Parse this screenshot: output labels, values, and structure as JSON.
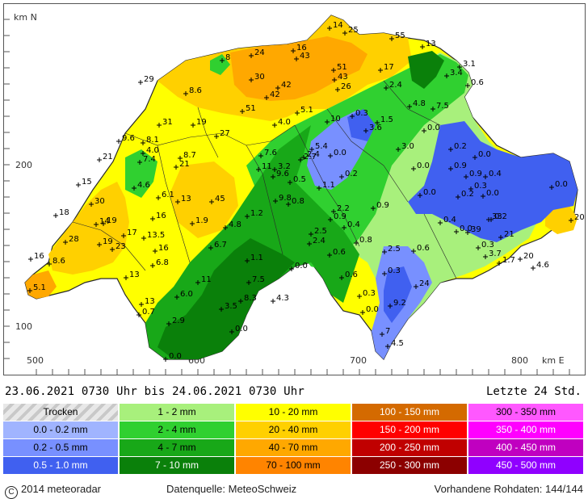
{
  "map": {
    "y_unit_label": "km N",
    "x_unit_label": "km E",
    "x_ticks": [
      "500",
      "600",
      "700",
      "800"
    ],
    "y_ticks": [
      "200",
      "100"
    ],
    "colors": {
      "border": "#2a2a2a",
      "trocken": "#ffffff",
      "c_0_02": "#a0b4ff",
      "c_02_05": "#7890ff",
      "c_05_1": "#4060f0",
      "c_1_2": "#a8f07c",
      "c_2_4": "#30d030",
      "c_4_7": "#18a818",
      "c_7_10": "#0a800a",
      "c_10_20": "#ffff00",
      "c_20_40": "#ffd000",
      "c_40_70": "#ffa800",
      "c_70_100": "#ff8400"
    },
    "labels": [
      "14",
      "25",
      "55",
      "13",
      "16",
      "43",
      "24",
      "8",
      "29",
      "30",
      "42",
      "51",
      "43",
      "17",
      "3.1",
      "0.6",
      "26",
      "8.6",
      "42",
      "3.4",
      "51",
      "2.4",
      "4.8",
      "7.5",
      "5.1",
      "10",
      "0.3",
      "1.5",
      "3.6",
      "31",
      "9.6",
      "19",
      "27",
      "4.0",
      "0.0",
      "0.2",
      "0.0",
      "21",
      "8.1",
      "4.0",
      "5.4",
      "2.4",
      "3.0",
      "0.0",
      "7.4",
      "21",
      "8.7",
      "7.6",
      "2.7",
      "0.0",
      "0.9",
      "0.9",
      "0.4",
      "15",
      "11",
      "3.2",
      "9.6",
      "0.2",
      "0.3",
      "0.0",
      "4.6",
      "6.1",
      "13",
      "45",
      "0.5",
      "1.1",
      "0.2",
      "18",
      "30",
      "9.8",
      "0.8",
      "0.9",
      "0.0",
      "0.0",
      "0.2",
      "20",
      "14",
      "16",
      "1.9",
      "1.2",
      "2.2",
      "0.9",
      "0.4",
      "0.0",
      "33",
      "19",
      "17",
      "4.8",
      "2.5",
      "0.4",
      "39",
      "28",
      "19",
      "13.5",
      "6.7",
      "2.4",
      "0.8",
      "2.5",
      "0.6",
      "0.3",
      "21",
      "16",
      "8.6",
      "23",
      "16",
      "6.8",
      "1.1",
      "0.6",
      "3.7",
      "1.7",
      "20",
      "13",
      "0.0",
      "0.3",
      "4.6",
      "11",
      "7.5",
      "0.6",
      "24",
      "5.1",
      "6.0",
      "13",
      "4.3",
      "0.3",
      "9.2",
      "0.7",
      "3.5",
      "8.3",
      "2.9",
      "0.0",
      "7",
      "0.0",
      "4.5",
      "0.0"
    ]
  },
  "period": {
    "text": "23.06.2021 0730 Uhr  bis  24.06.2021 0730 Uhr",
    "window": "Letzte 24 Std."
  },
  "legend": {
    "columns": [
      [
        "Trocken",
        "0.0 - 0.2 mm",
        "0.2 - 0.5 mm",
        "0.5 - 1.0 mm"
      ],
      [
        "1 - 2 mm",
        "2 - 4 mm",
        "4 - 7 mm",
        "7 - 10 mm"
      ],
      [
        "10 - 20 mm",
        "20 - 40 mm",
        "40 - 70 mm",
        "70 - 100 mm"
      ],
      [
        "100 - 150 mm",
        "150 - 200 mm",
        "200 - 250 mm",
        "250 - 300 mm"
      ],
      [
        "300 - 350 mm",
        "350 - 400 mm",
        "400 - 450 mm",
        "450 - 500 mm"
      ]
    ],
    "colors": [
      [
        "#d8d8d8",
        "#a0b4ff",
        "#7890ff",
        "#4060f0"
      ],
      [
        "#a8f07c",
        "#30d030",
        "#18a818",
        "#0a800a"
      ],
      [
        "#ffff00",
        "#ffd000",
        "#ffa800",
        "#ff8400"
      ],
      [
        "#d46a00",
        "#ff0000",
        "#c00000",
        "#8c0000"
      ],
      [
        "#ff58ff",
        "#ff00ff",
        "#c000c0",
        "#9000ff"
      ]
    ]
  },
  "footer": {
    "copyright_symbol": "C",
    "copyright": "2014  meteoradar",
    "source": "Datenquelle: MeteoSchweiz",
    "raw": "Vorhandene Rohdaten: 144/144"
  }
}
